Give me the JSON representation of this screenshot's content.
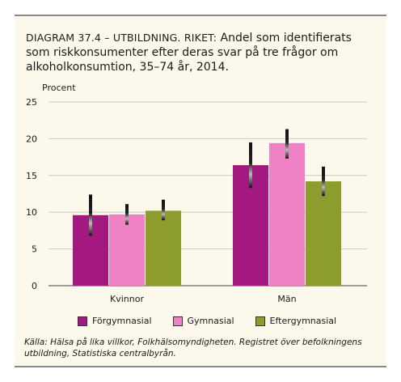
{
  "title": {
    "lead": "DIAGRAM 37.4 – UTBILDNING. RIKET:",
    "text": "Andel som identifierats som riskkonsumenter efter deras svar på tre frågor om alkoholkonsumtion, 35–74 år, 2014."
  },
  "source": "Källa: Hälsa på lika villkor, Folkhälsomyndigheten. Registret över befolkningens utbildning, Statistiska centralbyrån.",
  "chart_data": {
    "type": "bar",
    "ylabel": "Procent",
    "ylim": [
      0,
      25
    ],
    "yticks": [
      0,
      5,
      10,
      15,
      20,
      25
    ],
    "grid": true,
    "legend_position": "bottom",
    "categories": [
      "Kvinnor",
      "Män"
    ],
    "series": [
      {
        "name": "Förgymnasial",
        "color": "#a3197f",
        "values": [
          9.6,
          16.4
        ],
        "error": [
          [
            6.8,
            12.4
          ],
          [
            13.3,
            19.5
          ]
        ]
      },
      {
        "name": "Gymnasial",
        "color": "#ef82c5",
        "values": [
          9.7,
          19.4
        ],
        "error": [
          [
            8.3,
            11.1
          ],
          [
            17.3,
            21.3
          ]
        ]
      },
      {
        "name": "Eftergymnasial",
        "color": "#8c9d2e",
        "values": [
          10.2,
          14.2
        ],
        "error": [
          [
            8.9,
            11.7
          ],
          [
            12.2,
            16.2
          ]
        ]
      }
    ]
  }
}
